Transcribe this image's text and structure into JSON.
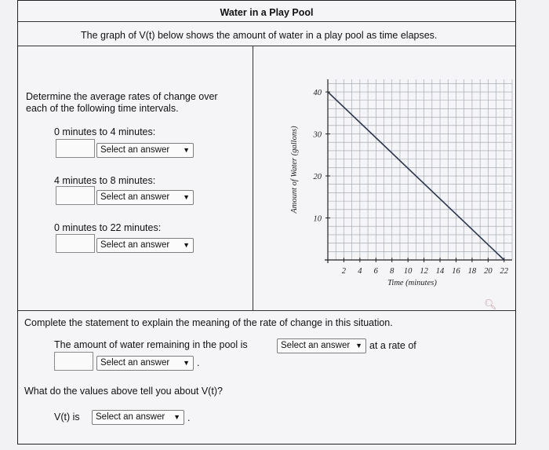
{
  "header": {
    "title": "Water in a Play Pool",
    "description": "The graph of V(t) below shows the amount of water in a play pool as time elapses."
  },
  "left_panel": {
    "instructions_line1": "Determine the average rates of change over",
    "instructions_line2": "each of the following time intervals.",
    "intervals": [
      {
        "label": "0 minutes to 4 minutes:",
        "select": "Select an answer"
      },
      {
        "label": "4 minutes to 8 minutes:",
        "select": "Select an answer"
      },
      {
        "label": "0 minutes to 22 minutes:",
        "select": "Select an answer"
      }
    ]
  },
  "chart_data": {
    "type": "line",
    "xlabel": "Time (minutes)",
    "ylabel": "Amount of Water (gallons)",
    "x_ticks": [
      "2",
      "4",
      "6",
      "8",
      "10",
      "12",
      "14",
      "16",
      "18",
      "20",
      "22"
    ],
    "y_ticks": [
      "10",
      "20",
      "30",
      "40"
    ],
    "xlim": [
      0,
      23
    ],
    "ylim": [
      0,
      43
    ],
    "grid": true,
    "series": [
      {
        "x": [
          0,
          22
        ],
        "y": [
          40,
          0
        ]
      }
    ]
  },
  "bottom": {
    "statement_label": "Complete the statement to explain the meaning of the rate of change in this situation.",
    "sentence_start": "The amount of water remaining in the pool is",
    "select1": "Select an answer",
    "sentence_mid": "at a rate of",
    "select2": "Select an answer",
    "period": ".",
    "question": "What do the values above tell you about V(t)?",
    "vt_prefix": "V(t) is",
    "select3": "Select an answer",
    "period2": "."
  },
  "icons": {
    "search": "magnifier-icon"
  }
}
